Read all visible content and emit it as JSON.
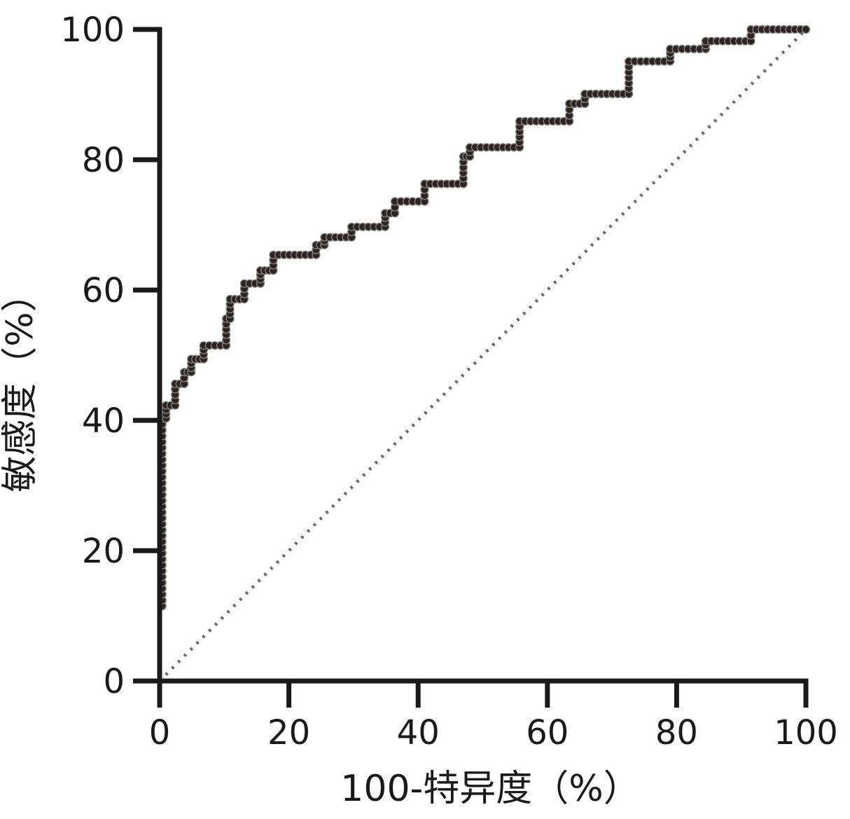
{
  "chart_data": {
    "type": "line",
    "subtype": "roc-step-curve",
    "title": "",
    "xlabel": "100-特异度（%）",
    "ylabel": "敏感度（%）",
    "xlim": [
      0,
      100
    ],
    "ylim": [
      0,
      100
    ],
    "x_ticks": [
      "0",
      "20",
      "40",
      "60",
      "80",
      "100"
    ],
    "x_tick_values": [
      0,
      20,
      40,
      60,
      80,
      100
    ],
    "y_ticks": [
      "0",
      "20",
      "40",
      "60",
      "80",
      "100"
    ],
    "y_tick_values": [
      0,
      20,
      40,
      60,
      80,
      100
    ],
    "grid": false,
    "legend_position": "none",
    "colors": {
      "curve": "#231f20",
      "marker_fill": "#2a2424",
      "marker_edge": "#857e7b",
      "reference_line": "#6e6866",
      "axis": "#1a1a1a",
      "text": "#1a1a1a"
    },
    "reference_line": {
      "name": "chance-diagonal",
      "from": [
        0,
        0
      ],
      "to": [
        100,
        100
      ],
      "style": "dotted"
    },
    "series": [
      {
        "name": "ROC curve",
        "marker": "circle",
        "points": [
          [
            0.4,
            11.5
          ],
          [
            0.4,
            40.3
          ],
          [
            1.0,
            40.3
          ],
          [
            1.0,
            42.3
          ],
          [
            2.4,
            42.3
          ],
          [
            2.4,
            45.6
          ],
          [
            3.8,
            45.6
          ],
          [
            3.8,
            47.4
          ],
          [
            4.9,
            47.4
          ],
          [
            4.9,
            49.4
          ],
          [
            6.8,
            49.4
          ],
          [
            6.8,
            51.5
          ],
          [
            10.3,
            51.5
          ],
          [
            10.3,
            55.6
          ],
          [
            10.9,
            55.6
          ],
          [
            10.9,
            58.6
          ],
          [
            13.1,
            58.6
          ],
          [
            13.1,
            61.0
          ],
          [
            15.6,
            61.0
          ],
          [
            15.6,
            63.0
          ],
          [
            17.6,
            63.0
          ],
          [
            17.6,
            65.4
          ],
          [
            24.2,
            65.4
          ],
          [
            24.2,
            66.9
          ],
          [
            25.5,
            66.9
          ],
          [
            25.5,
            68.1
          ],
          [
            29.7,
            68.1
          ],
          [
            29.7,
            69.7
          ],
          [
            34.9,
            69.7
          ],
          [
            34.9,
            71.8
          ],
          [
            36.4,
            71.8
          ],
          [
            36.4,
            73.6
          ],
          [
            41.0,
            73.6
          ],
          [
            41.0,
            76.3
          ],
          [
            47.0,
            76.3
          ],
          [
            47.0,
            80.5
          ],
          [
            48.0,
            80.5
          ],
          [
            48.0,
            81.9
          ],
          [
            55.7,
            81.9
          ],
          [
            55.7,
            85.9
          ],
          [
            63.4,
            85.9
          ],
          [
            63.4,
            88.6
          ],
          [
            65.8,
            88.6
          ],
          [
            65.8,
            90.1
          ],
          [
            72.6,
            90.1
          ],
          [
            72.6,
            95.1
          ],
          [
            79.0,
            95.1
          ],
          [
            79.0,
            97.0
          ],
          [
            84.5,
            97.0
          ],
          [
            84.5,
            98.2
          ],
          [
            91.5,
            98.2
          ],
          [
            91.5,
            100.0
          ],
          [
            100.0,
            100.0
          ]
        ]
      }
    ]
  }
}
